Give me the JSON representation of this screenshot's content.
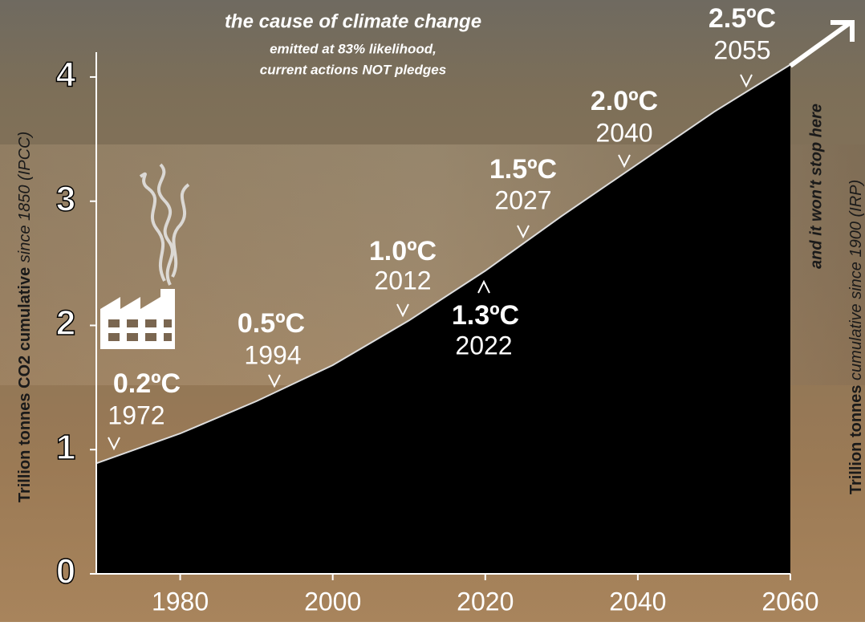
{
  "chart_data": {
    "type": "area",
    "title": "the cause of climate change",
    "subtitle": [
      "emitted at 83% likelihood,",
      "current actions NOT pledges"
    ],
    "y_label": [
      "Trillion tonnes CO2 cumulative",
      "since 1850 (IPCC)"
    ],
    "y2_label": [
      "Trillion tonnes",
      "cumulative since 1900 (IRP)"
    ],
    "note": "and it won't stop here",
    "x": [
      1969,
      1980,
      1990,
      2000,
      2010,
      2020,
      2030,
      2040,
      2050,
      2060
    ],
    "series": [
      {
        "color": "#000000",
        "values": [
          0.89,
          1.13,
          1.39,
          1.68,
          2.04,
          2.44,
          2.88,
          3.3,
          3.72,
          4.1
        ]
      }
    ],
    "xlim": [
      1969,
      2060
    ],
    "xticks": [
      1980,
      2000,
      2020,
      2040,
      2060
    ],
    "ylim": [
      0,
      4.2
    ],
    "yticks": [
      0,
      1,
      2,
      3,
      4
    ],
    "annotations": [
      {
        "temp": "0.2ºC",
        "year": "1972"
      },
      {
        "temp": "0.5ºC",
        "year": "1994"
      },
      {
        "temp": "1.0ºC",
        "year": "2012"
      },
      {
        "temp": "1.3ºC",
        "year": "2022"
      },
      {
        "temp": "1.5ºC",
        "year": "2027"
      },
      {
        "temp": "2.0ºC",
        "year": "2040"
      },
      {
        "temp": "2.5ºC",
        "year": "2055"
      }
    ]
  }
}
